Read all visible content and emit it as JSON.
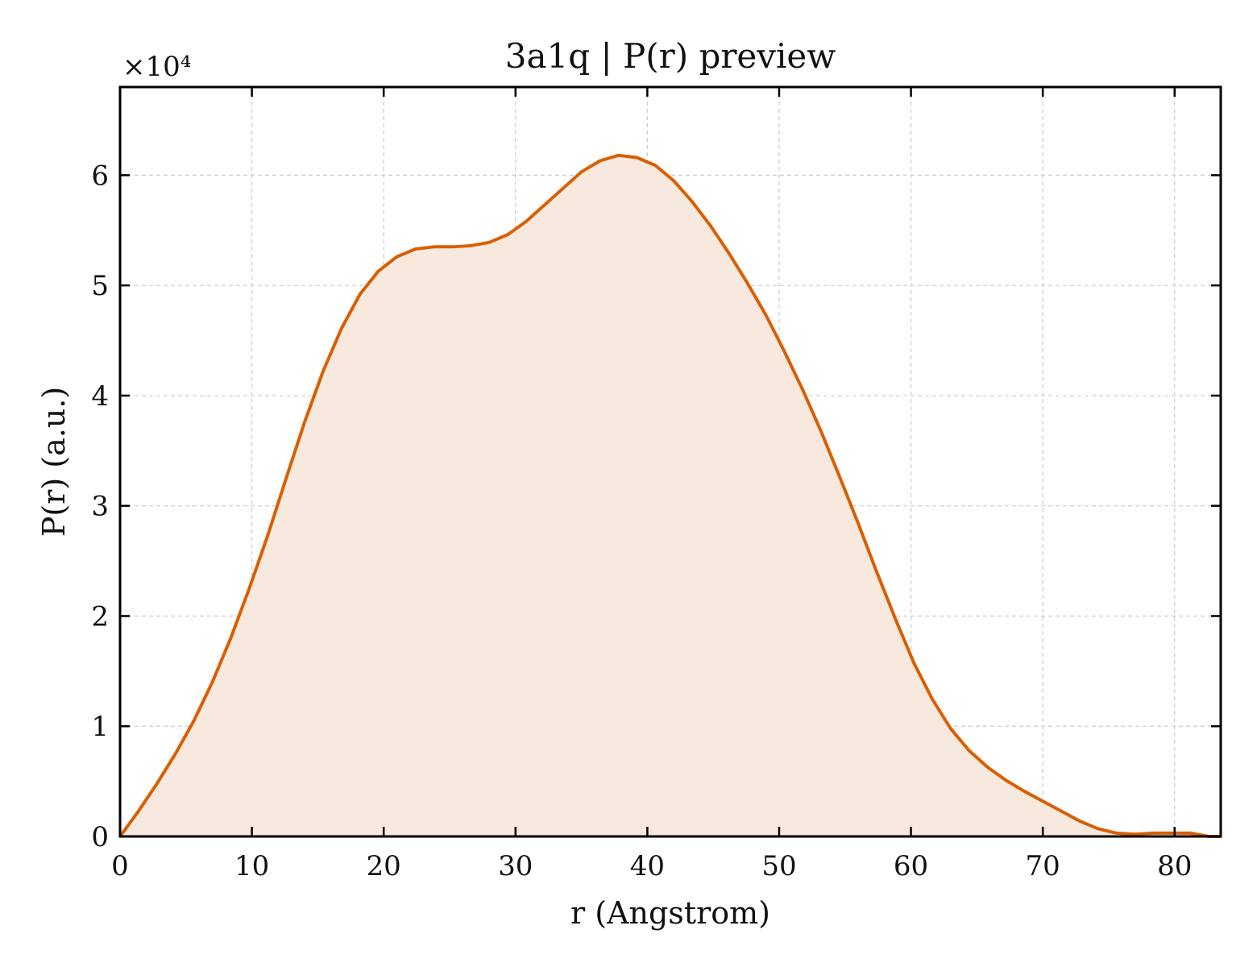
{
  "chart_data": {
    "type": "area",
    "title": "3a1q | P(r) preview",
    "xlabel": "r (Angstrom)",
    "ylabel": "P(r) (a.u.)",
    "y_multiplier_label": "×10⁴",
    "xlim": [
      0,
      83.5
    ],
    "ylim": [
      0,
      6.8
    ],
    "y_scale_factor": 10000,
    "grid": true,
    "legend": "none",
    "xticks": [
      0,
      10,
      20,
      30,
      40,
      50,
      60,
      70,
      80
    ],
    "yticks": [
      0,
      1,
      2,
      3,
      4,
      5,
      6
    ],
    "line_color": "#d95f02",
    "fill_color": "#f8e9de",
    "series": [
      {
        "x": [
          0,
          1.4,
          2.8,
          4.2,
          5.6,
          7.0,
          8.4,
          9.8,
          11.2,
          12.6,
          14.0,
          15.4,
          16.8,
          18.2,
          19.6,
          21.0,
          22.4,
          23.8,
          25.2,
          26.6,
          28.0,
          29.4,
          30.8,
          32.2,
          33.6,
          35.0,
          36.4,
          37.8,
          39.2,
          40.6,
          42.0,
          43.4,
          44.8,
          46.2,
          47.6,
          49.0,
          50.4,
          51.8,
          53.2,
          54.6,
          56.0,
          57.4,
          58.8,
          60.2,
          61.6,
          63.0,
          64.4,
          65.8,
          67.2,
          68.6,
          70.0,
          71.4,
          72.8,
          74.2,
          75.6,
          77.0,
          78.4,
          79.8,
          81.2,
          82.6,
          83.5
        ],
        "values": [
          0,
          0.23,
          0.48,
          0.75,
          1.05,
          1.4,
          1.8,
          2.25,
          2.73,
          3.25,
          3.76,
          4.22,
          4.61,
          4.92,
          5.13,
          5.26,
          5.33,
          5.35,
          5.35,
          5.36,
          5.39,
          5.46,
          5.58,
          5.73,
          5.88,
          6.03,
          6.13,
          6.18,
          6.16,
          6.09,
          5.95,
          5.76,
          5.54,
          5.29,
          5.02,
          4.73,
          4.4,
          4.05,
          3.67,
          3.26,
          2.84,
          2.4,
          1.98,
          1.58,
          1.25,
          0.98,
          0.78,
          0.63,
          0.51,
          0.41,
          0.32,
          0.23,
          0.14,
          0.07,
          0.03,
          0.02,
          0.03,
          0.03,
          0.03,
          0.0,
          0.0
        ]
      }
    ]
  }
}
